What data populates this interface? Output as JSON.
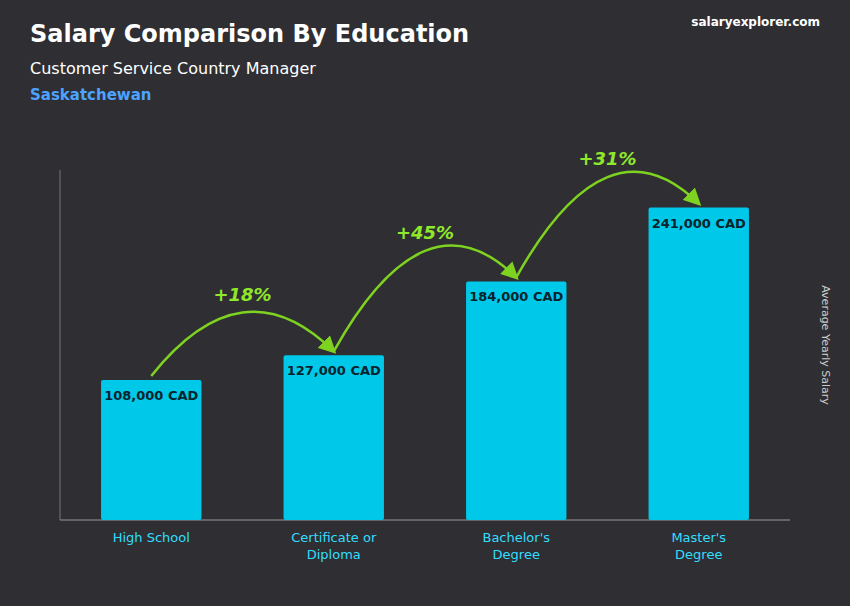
{
  "chart_data": {
    "type": "bar",
    "title": "Salary Comparison By Education",
    "subtitle": "Customer Service Country Manager",
    "annotations": [
      "Saskatchewan",
      "salaryexplorer.com"
    ],
    "categories": [
      "High School",
      "Certificate or\nDiploma",
      "Bachelor's\nDegree",
      "Master's\nDegree"
    ],
    "values": [
      108000,
      127000,
      184000,
      241000
    ],
    "value_labels": [
      "108,000 CAD",
      "127,000 CAD",
      "184,000 CAD",
      "241,000 CAD"
    ],
    "data_labels": true,
    "color": "#00c8e8",
    "ylabel": "Average Yearly Salary",
    "ylim": [
      0,
      270000
    ],
    "tick_labels": "x",
    "grid": false,
    "arrows": [
      {
        "from": 0,
        "to": 1,
        "label": "+18%"
      },
      {
        "from": 1,
        "to": 2,
        "label": "+45%"
      },
      {
        "from": 2,
        "to": 3,
        "label": "+31%"
      }
    ]
  }
}
